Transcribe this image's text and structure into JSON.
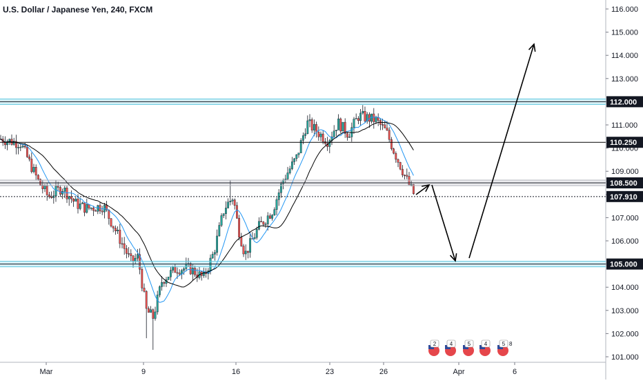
{
  "chart_data": {
    "type": "candlestick",
    "title": "U.S. Dollar / Japanese Yen, 240, FXCM",
    "ylim": [
      100.9,
      116.4
    ],
    "y_ticks": [
      101,
      102,
      103,
      104,
      105,
      106,
      107,
      108,
      109,
      110,
      111,
      112,
      113,
      114,
      115,
      116
    ],
    "y_tick_labels": [
      "101.000",
      "102.000",
      "103.000",
      "104.000",
      "105.000",
      "106.000",
      "107.000",
      "108.000",
      "109.000",
      "110.000",
      "111.000",
      "112.000",
      "113.000",
      "114.000",
      "115.000",
      "116.000"
    ],
    "x_labels": [
      "Mar",
      "9",
      "16",
      "23",
      "26",
      "Apr",
      "6"
    ],
    "price_levels": [
      {
        "label": "112.000",
        "value": 112.0,
        "style": "zone",
        "color": "#5fc8e0"
      },
      {
        "label": "110.250",
        "value": 110.25,
        "style": "line",
        "color": "#000000"
      },
      {
        "label": "108.500",
        "value": 108.5,
        "style": "zone",
        "color": "#b2b5be"
      },
      {
        "label": "107.910",
        "value": 107.91,
        "style": "dotted",
        "color": "#000000"
      },
      {
        "label": "105.000",
        "value": 105.0,
        "style": "zone",
        "color": "#5fc8e0"
      }
    ],
    "projection": [
      {
        "from": [
          108.2,
          108.5
        ],
        "to": [
          108.35,
          108.15
        ]
      },
      {
        "from": [
          108.15,
          108.55
        ],
        "to": [
          105.1,
          105.15
        ]
      },
      {
        "from": [
          105.15,
          105.15
        ],
        "to": [
          114.5,
          114.45
        ]
      }
    ],
    "colors": {
      "up": "#26a69a",
      "down": "#ef5350",
      "ma_fast": "#2196f3",
      "ma_slow": "#000000"
    },
    "calendar_icons": [
      "2",
      "4",
      "5",
      "4",
      "5",
      "8"
    ]
  }
}
